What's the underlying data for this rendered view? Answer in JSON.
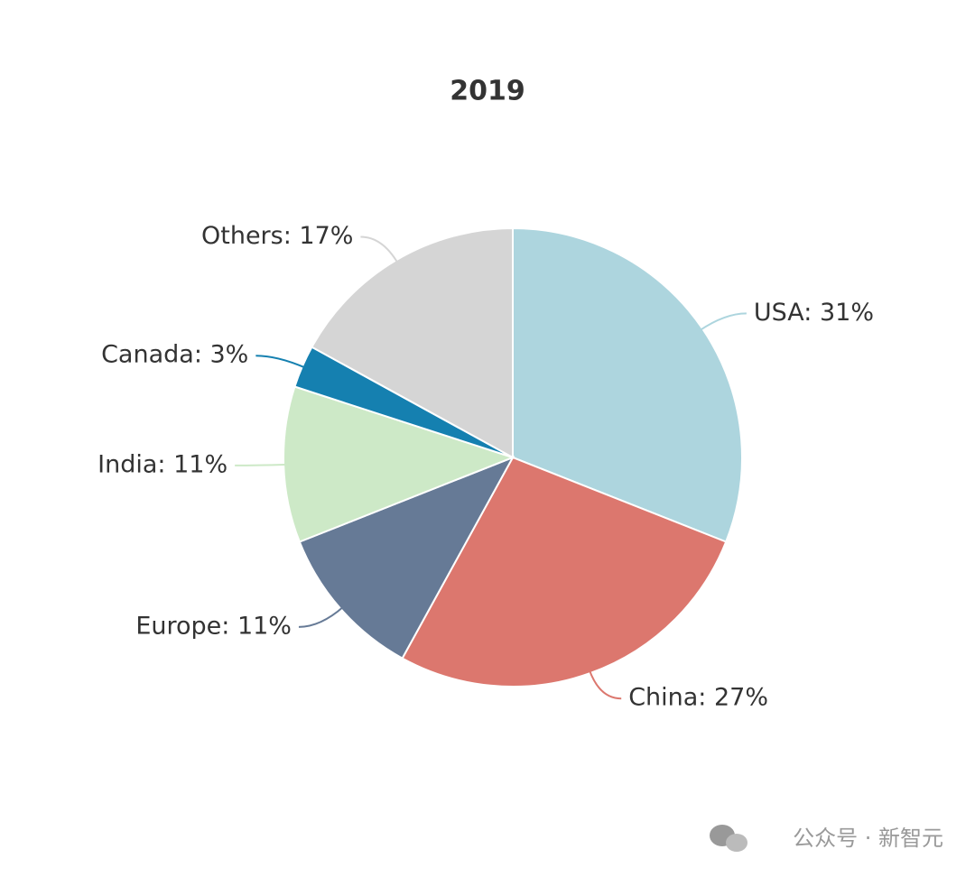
{
  "chart_data": {
    "type": "pie",
    "title": "2019",
    "values": [
      31,
      27,
      11,
      11,
      3,
      17
    ],
    "value_labels": [
      "USA: 31%",
      "China: 27%",
      "Europe: 11%",
      "India: 11%",
      "Canada: 3%",
      "Others: 17%"
    ],
    "colors": [
      "#add5de",
      "#dc776e",
      "#667a96",
      "#cde9c7",
      "#1580b0",
      "#d5d5d5"
    ]
  },
  "watermark": "公众号 · 新智元"
}
